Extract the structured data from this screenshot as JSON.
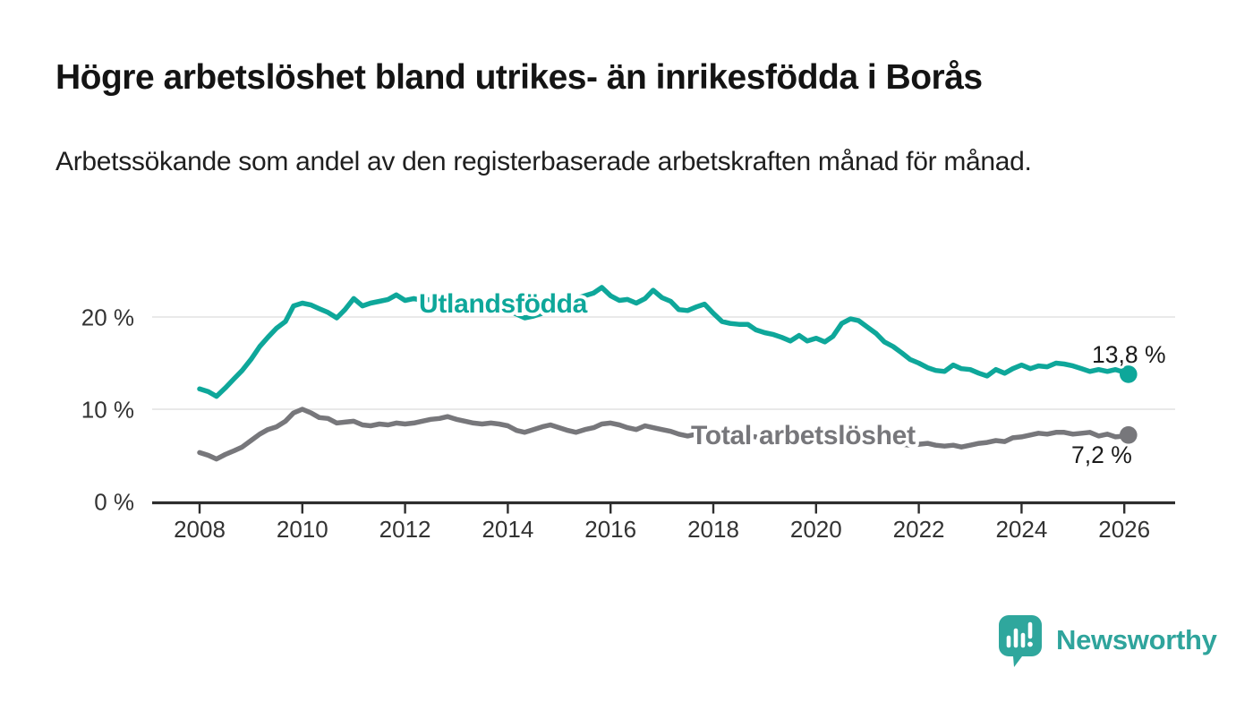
{
  "header": {
    "title": "Högre arbetslöshet bland utrikes- än inrikesfödda i Borås",
    "subtitle": "Arbetssökande som andel av den registerbaserade arbetskraften månad för månad."
  },
  "footer": {
    "brand": "Newsworthy"
  },
  "chart_data": {
    "type": "line",
    "title": "Högre arbetslöshet bland utrikes- än inrikesfödda i Borås",
    "xlabel": "",
    "ylabel": "",
    "xlim": [
      2007.1,
      2027.0
    ],
    "ylim": [
      0,
      24.5
    ],
    "grid": "horizontal",
    "colors": {
      "grid": "#e2e2e2",
      "axis": "#2d2d2d",
      "tick_text": "#333333",
      "value_label_text": "#1a1a1a",
      "brand": "#2fa49c"
    },
    "x_axis": {
      "ticks": [
        {
          "value": 2008,
          "label": "2008"
        },
        {
          "value": 2010,
          "label": "2010"
        },
        {
          "value": 2012,
          "label": "2012"
        },
        {
          "value": 2014,
          "label": "2014"
        },
        {
          "value": 2016,
          "label": "2016"
        },
        {
          "value": 2018,
          "label": "2018"
        },
        {
          "value": 2020,
          "label": "2020"
        },
        {
          "value": 2022,
          "label": "2022"
        },
        {
          "value": 2024,
          "label": "2024"
        },
        {
          "value": 2026,
          "label": "2026"
        }
      ]
    },
    "y_axis": {
      "ticks": [
        {
          "value": 0,
          "label": "0 %"
        },
        {
          "value": 10,
          "label": "10 %"
        },
        {
          "value": 20,
          "label": "20 %"
        }
      ]
    },
    "series": [
      {
        "key": "utlandsfodda",
        "name": "Utlandsfödda",
        "color": "#0ea79a",
        "end_label": "13,8 %",
        "end_value": 13.8,
        "points": [
          [
            2008.0,
            12.2
          ],
          [
            2008.17,
            11.9
          ],
          [
            2008.33,
            11.4
          ],
          [
            2008.5,
            12.3
          ],
          [
            2008.67,
            13.3
          ],
          [
            2008.83,
            14.2
          ],
          [
            2009.0,
            15.4
          ],
          [
            2009.17,
            16.8
          ],
          [
            2009.33,
            17.8
          ],
          [
            2009.5,
            18.8
          ],
          [
            2009.67,
            19.5
          ],
          [
            2009.83,
            21.2
          ],
          [
            2010.0,
            21.5
          ],
          [
            2010.17,
            21.3
          ],
          [
            2010.33,
            20.9
          ],
          [
            2010.5,
            20.5
          ],
          [
            2010.67,
            19.9
          ],
          [
            2010.83,
            20.8
          ],
          [
            2011.0,
            22.0
          ],
          [
            2011.17,
            21.2
          ],
          [
            2011.33,
            21.5
          ],
          [
            2011.5,
            21.7
          ],
          [
            2011.67,
            21.9
          ],
          [
            2011.83,
            22.4
          ],
          [
            2012.0,
            21.8
          ],
          [
            2012.17,
            22.0
          ],
          [
            2012.33,
            21.8
          ],
          [
            2012.5,
            21.9
          ],
          [
            2012.67,
            22.1
          ],
          [
            2012.83,
            21.9
          ],
          [
            2013.0,
            21.8
          ],
          [
            2013.17,
            21.6
          ],
          [
            2013.33,
            21.4
          ],
          [
            2013.5,
            21.2
          ],
          [
            2013.67,
            21.1
          ],
          [
            2013.83,
            20.9
          ],
          [
            2014.0,
            20.7
          ],
          [
            2014.17,
            20.3
          ],
          [
            2014.33,
            19.9
          ],
          [
            2014.5,
            20.1
          ],
          [
            2014.67,
            20.4
          ],
          [
            2014.83,
            20.9
          ],
          [
            2015.0,
            21.2
          ],
          [
            2015.17,
            21.6
          ],
          [
            2015.33,
            22.0
          ],
          [
            2015.5,
            22.3
          ],
          [
            2015.67,
            22.6
          ],
          [
            2015.83,
            23.2
          ],
          [
            2016.0,
            22.3
          ],
          [
            2016.17,
            21.8
          ],
          [
            2016.33,
            21.9
          ],
          [
            2016.5,
            21.5
          ],
          [
            2016.67,
            22.0
          ],
          [
            2016.83,
            22.9
          ],
          [
            2017.0,
            22.1
          ],
          [
            2017.17,
            21.7
          ],
          [
            2017.33,
            20.8
          ],
          [
            2017.5,
            20.7
          ],
          [
            2017.67,
            21.1
          ],
          [
            2017.83,
            21.4
          ],
          [
            2018.0,
            20.4
          ],
          [
            2018.17,
            19.5
          ],
          [
            2018.33,
            19.3
          ],
          [
            2018.5,
            19.2
          ],
          [
            2018.67,
            19.2
          ],
          [
            2018.83,
            18.6
          ],
          [
            2019.0,
            18.3
          ],
          [
            2019.17,
            18.1
          ],
          [
            2019.33,
            17.8
          ],
          [
            2019.5,
            17.4
          ],
          [
            2019.67,
            18.0
          ],
          [
            2019.83,
            17.4
          ],
          [
            2020.0,
            17.7
          ],
          [
            2020.17,
            17.3
          ],
          [
            2020.33,
            17.9
          ],
          [
            2020.5,
            19.3
          ],
          [
            2020.67,
            19.8
          ],
          [
            2020.83,
            19.6
          ],
          [
            2021.0,
            18.9
          ],
          [
            2021.17,
            18.2
          ],
          [
            2021.33,
            17.3
          ],
          [
            2021.5,
            16.8
          ],
          [
            2021.67,
            16.1
          ],
          [
            2021.83,
            15.4
          ],
          [
            2022.0,
            15.0
          ],
          [
            2022.17,
            14.5
          ],
          [
            2022.33,
            14.2
          ],
          [
            2022.5,
            14.1
          ],
          [
            2022.67,
            14.8
          ],
          [
            2022.83,
            14.4
          ],
          [
            2023.0,
            14.3
          ],
          [
            2023.17,
            13.9
          ],
          [
            2023.33,
            13.6
          ],
          [
            2023.5,
            14.3
          ],
          [
            2023.67,
            13.9
          ],
          [
            2023.83,
            14.4
          ],
          [
            2024.0,
            14.8
          ],
          [
            2024.17,
            14.4
          ],
          [
            2024.33,
            14.7
          ],
          [
            2024.5,
            14.6
          ],
          [
            2024.67,
            15.0
          ],
          [
            2024.83,
            14.9
          ],
          [
            2025.0,
            14.7
          ],
          [
            2025.17,
            14.4
          ],
          [
            2025.33,
            14.1
          ],
          [
            2025.5,
            14.3
          ],
          [
            2025.67,
            14.1
          ],
          [
            2025.83,
            14.3
          ],
          [
            2026.0,
            14.0
          ],
          [
            2026.08,
            13.8
          ]
        ]
      },
      {
        "key": "total-arbetsloshet",
        "name": "Total arbetslöshet",
        "color": "#77777b",
        "end_label": "7,2 %",
        "end_value": 7.2,
        "points": [
          [
            2008.0,
            5.3
          ],
          [
            2008.17,
            5.0
          ],
          [
            2008.33,
            4.6
          ],
          [
            2008.5,
            5.1
          ],
          [
            2008.67,
            5.5
          ],
          [
            2008.83,
            5.9
          ],
          [
            2009.0,
            6.6
          ],
          [
            2009.17,
            7.3
          ],
          [
            2009.33,
            7.8
          ],
          [
            2009.5,
            8.1
          ],
          [
            2009.67,
            8.7
          ],
          [
            2009.83,
            9.6
          ],
          [
            2010.0,
            10.0
          ],
          [
            2010.17,
            9.6
          ],
          [
            2010.33,
            9.1
          ],
          [
            2010.5,
            9.0
          ],
          [
            2010.67,
            8.5
          ],
          [
            2010.83,
            8.6
          ],
          [
            2011.0,
            8.7
          ],
          [
            2011.17,
            8.3
          ],
          [
            2011.33,
            8.2
          ],
          [
            2011.5,
            8.4
          ],
          [
            2011.67,
            8.3
          ],
          [
            2011.83,
            8.5
          ],
          [
            2012.0,
            8.4
          ],
          [
            2012.17,
            8.5
          ],
          [
            2012.33,
            8.7
          ],
          [
            2012.5,
            8.9
          ],
          [
            2012.67,
            9.0
          ],
          [
            2012.83,
            9.2
          ],
          [
            2013.0,
            8.9
          ],
          [
            2013.17,
            8.7
          ],
          [
            2013.33,
            8.5
          ],
          [
            2013.5,
            8.4
          ],
          [
            2013.67,
            8.5
          ],
          [
            2013.83,
            8.4
          ],
          [
            2014.0,
            8.2
          ],
          [
            2014.17,
            7.7
          ],
          [
            2014.33,
            7.5
          ],
          [
            2014.5,
            7.8
          ],
          [
            2014.67,
            8.1
          ],
          [
            2014.83,
            8.3
          ],
          [
            2015.0,
            8.0
          ],
          [
            2015.17,
            7.7
          ],
          [
            2015.33,
            7.5
          ],
          [
            2015.5,
            7.8
          ],
          [
            2015.67,
            8.0
          ],
          [
            2015.83,
            8.4
          ],
          [
            2016.0,
            8.5
          ],
          [
            2016.17,
            8.3
          ],
          [
            2016.33,
            8.0
          ],
          [
            2016.5,
            7.8
          ],
          [
            2016.67,
            8.2
          ],
          [
            2016.83,
            8.0
          ],
          [
            2017.0,
            7.8
          ],
          [
            2017.17,
            7.6
          ],
          [
            2017.33,
            7.3
          ],
          [
            2017.5,
            7.1
          ],
          [
            2017.67,
            7.3
          ],
          [
            2017.83,
            7.4
          ],
          [
            2018.0,
            7.2
          ],
          [
            2018.17,
            7.0
          ],
          [
            2018.33,
            6.9
          ],
          [
            2018.5,
            7.0
          ],
          [
            2018.67,
            7.1
          ],
          [
            2018.83,
            7.0
          ],
          [
            2019.0,
            6.9
          ],
          [
            2019.17,
            6.8
          ],
          [
            2019.33,
            6.7
          ],
          [
            2019.5,
            6.6
          ],
          [
            2019.67,
            6.8
          ],
          [
            2019.83,
            6.7
          ],
          [
            2020.0,
            6.8
          ],
          [
            2020.17,
            6.7
          ],
          [
            2020.33,
            7.0
          ],
          [
            2020.5,
            7.4
          ],
          [
            2020.67,
            7.5
          ],
          [
            2020.83,
            7.3
          ],
          [
            2021.0,
            7.1
          ],
          [
            2021.17,
            6.9
          ],
          [
            2021.33,
            6.6
          ],
          [
            2021.5,
            6.4
          ],
          [
            2021.67,
            6.2
          ],
          [
            2021.83,
            6.1
          ],
          [
            2022.0,
            6.2
          ],
          [
            2022.17,
            6.3
          ],
          [
            2022.33,
            6.1
          ],
          [
            2022.5,
            6.0
          ],
          [
            2022.67,
            6.1
          ],
          [
            2022.83,
            5.9
          ],
          [
            2023.0,
            6.1
          ],
          [
            2023.17,
            6.3
          ],
          [
            2023.33,
            6.4
          ],
          [
            2023.5,
            6.6
          ],
          [
            2023.67,
            6.5
          ],
          [
            2023.83,
            6.9
          ],
          [
            2024.0,
            7.0
          ],
          [
            2024.17,
            7.2
          ],
          [
            2024.33,
            7.4
          ],
          [
            2024.5,
            7.3
          ],
          [
            2024.67,
            7.5
          ],
          [
            2024.83,
            7.5
          ],
          [
            2025.0,
            7.3
          ],
          [
            2025.17,
            7.4
          ],
          [
            2025.33,
            7.5
          ],
          [
            2025.5,
            7.1
          ],
          [
            2025.67,
            7.3
          ],
          [
            2025.83,
            7.0
          ],
          [
            2026.0,
            7.1
          ],
          [
            2026.08,
            7.2
          ]
        ]
      }
    ],
    "legend_position": "inline-labels"
  }
}
